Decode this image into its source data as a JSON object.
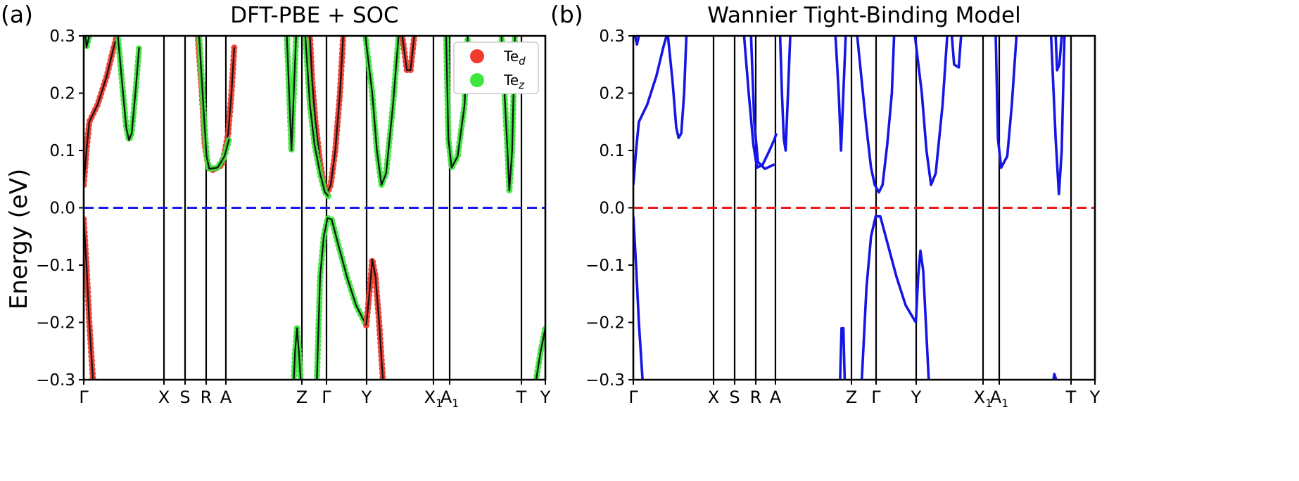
{
  "figure": {
    "ylabel": "Energy (eV)"
  },
  "chart_data": [
    {
      "type": "line",
      "panel_label": "(a)",
      "title": "DFT-PBE + SOC",
      "ylabel": "Energy (eV)",
      "ylim": [
        -0.3,
        0.3
      ],
      "y_ticks": [
        "0.3",
        "0.2",
        "0.1",
        "0.0",
        "−0.1",
        "−0.2",
        "−0.3"
      ],
      "k_points": [
        {
          "label": "Γ"
        },
        {
          "label": "X"
        },
        {
          "label": "S"
        },
        {
          "label": "R"
        },
        {
          "label": "A"
        },
        {
          "label": "Z"
        },
        {
          "label": "Γ"
        },
        {
          "label": "Y"
        },
        {
          "label": "X",
          "sub": "1"
        },
        {
          "label": "A",
          "sub": "1"
        },
        {
          "label": "T"
        },
        {
          "label": "Y"
        }
      ],
      "fermi_level": 0.0,
      "fermi_color": "#1a1aee",
      "band_color": "#111111",
      "legend": {
        "placement": "top-right",
        "entries": [
          {
            "label": "Te",
            "sub": "d",
            "color": "#f03a2e"
          },
          {
            "label": "Te",
            "sub": "z",
            "color": "#3ee63e"
          }
        ]
      }
    },
    {
      "type": "line",
      "panel_label": "(b)",
      "title": "Wannier Tight-Binding Model",
      "ylim": [
        -0.3,
        0.3
      ],
      "y_ticks": [
        "0.3",
        "0.2",
        "0.1",
        "0.0",
        "−0.1",
        "−0.2",
        "−0.3"
      ],
      "k_points": [
        {
          "label": "Γ"
        },
        {
          "label": "X"
        },
        {
          "label": "S"
        },
        {
          "label": "R"
        },
        {
          "label": "A"
        },
        {
          "label": "Z"
        },
        {
          "label": "Γ"
        },
        {
          "label": "Y"
        },
        {
          "label": "X",
          "sub": "1"
        },
        {
          "label": "A",
          "sub": "1"
        },
        {
          "label": "T"
        },
        {
          "label": "Y"
        }
      ],
      "fermi_level": 0.0,
      "fermi_color": "#ee1a1a",
      "band_color": "#1515e6"
    }
  ]
}
